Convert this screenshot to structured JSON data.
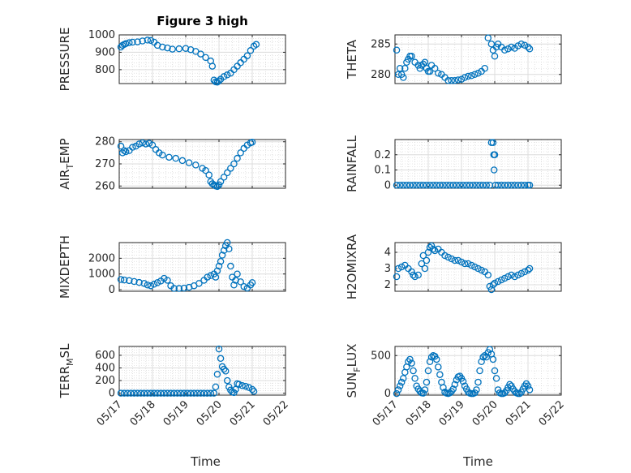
{
  "chart_data": {
    "title": "Figure 3 high",
    "xlabel": "Time",
    "x_tick_labels": [
      "05/17",
      "05/18",
      "05/19",
      "05/20",
      "05/21",
      "05/22"
    ],
    "marker": "circle",
    "marker_color": "#0072BD",
    "grid": true,
    "minor_grid": true,
    "subplots": [
      {
        "type": "scatter",
        "ylabel_main": "PRESSURE",
        "ylabel_sub": "",
        "ylim": [
          720,
          1000
        ],
        "yticks": [
          800,
          900,
          1000
        ],
        "series": [
          {
            "x": [
              17.05,
              17.1,
              17.15,
              17.2,
              17.3,
              17.4,
              17.55,
              17.7,
              17.85,
              17.95,
              18.05,
              18.15,
              18.3,
              18.45,
              18.6,
              18.8,
              19.0,
              19.15,
              19.3,
              19.45,
              19.6,
              19.75,
              19.8,
              19.85,
              19.9,
              19.95,
              20.0,
              20.05,
              20.15,
              20.25,
              20.35,
              20.45,
              20.55,
              20.65,
              20.75,
              20.85,
              20.95,
              21.05,
              21.12
            ],
            "y": [
              930,
              940,
              945,
              950,
              955,
              958,
              960,
              965,
              970,
              968,
              958,
              940,
              930,
              925,
              918,
              920,
              922,
              915,
              905,
              890,
              870,
              850,
              820,
              740,
              730,
              728,
              735,
              745,
              760,
              770,
              780,
              800,
              820,
              840,
              860,
              880,
              910,
              935,
              945
            ]
          }
        ]
      },
      {
        "type": "scatter",
        "ylabel_main": "THETA",
        "ylabel_sub": "",
        "ylim": [
          278.5,
          286.5
        ],
        "yticks": [
          280,
          285
        ],
        "series": [
          {
            "x": [
              17.05,
              17.1,
              17.15,
              17.2,
              17.25,
              17.3,
              17.35,
              17.4,
              17.45,
              17.5,
              17.6,
              17.7,
              17.75,
              17.8,
              17.85,
              17.9,
              17.95,
              18.0,
              18.05,
              18.1,
              18.2,
              18.3,
              18.4,
              18.5,
              18.6,
              18.7,
              18.8,
              18.9,
              19.0,
              19.1,
              19.2,
              19.3,
              19.4,
              19.5,
              19.6,
              19.7,
              19.8,
              19.9,
              19.95,
              20.0,
              20.05,
              20.1,
              20.2,
              20.3,
              20.4,
              20.5,
              20.6,
              20.7,
              20.8,
              20.9,
              21.0,
              21.05
            ],
            "y": [
              284,
              280,
              281,
              280,
              279.5,
              281,
              282,
              282.5,
              283,
              283,
              282,
              281.5,
              281,
              281.5,
              281.7,
              282,
              281,
              280.5,
              280.5,
              281.5,
              281,
              280.2,
              280,
              279.5,
              279,
              279,
              279,
              279.1,
              279.2,
              279.5,
              279.7,
              279.8,
              280,
              280.2,
              280.5,
              281,
              286,
              285,
              284,
              283,
              284.5,
              285,
              284.5,
              284,
              284.2,
              284.5,
              284.3,
              284.7,
              285,
              284.8,
              284.5,
              284.2
            ]
          }
        ]
      },
      {
        "type": "scatter",
        "ylabel_main": "AIR",
        "ylabel_sub": "T",
        "ylabel_tail": "EMP",
        "ylim": [
          259,
          281
        ],
        "yticks": [
          260,
          270,
          280
        ],
        "series": [
          {
            "x": [
              17.05,
              17.1,
              17.15,
              17.2,
              17.3,
              17.4,
              17.5,
              17.6,
              17.7,
              17.8,
              17.9,
              18.0,
              18.1,
              18.2,
              18.3,
              18.5,
              18.7,
              18.9,
              19.1,
              19.3,
              19.5,
              19.6,
              19.7,
              19.75,
              19.8,
              19.85,
              19.9,
              19.95,
              20.0,
              20.05,
              20.15,
              20.25,
              20.35,
              20.45,
              20.55,
              20.65,
              20.75,
              20.85,
              20.95,
              21.0
            ],
            "y": [
              278,
              275,
              276,
              275.5,
              276,
              277.5,
              278,
              279,
              279.5,
              279,
              279.3,
              278.5,
              276.5,
              275,
              274,
              273,
              272.5,
              271.5,
              270.5,
              269.5,
              268,
              267,
              265,
              262,
              261,
              260.5,
              260,
              259.8,
              260.5,
              262,
              264,
              266,
              268,
              270,
              272.5,
              275,
              277,
              278.5,
              279.5,
              279.8
            ]
          }
        ]
      },
      {
        "type": "scatter",
        "ylabel_main": "RAINFALL",
        "ylabel_sub": "",
        "ylim": [
          -0.02,
          0.3
        ],
        "yticks": [
          0,
          0.1,
          0.2
        ],
        "series": [
          {
            "x": [
              17.05,
              17.15,
              17.25,
              17.35,
              17.45,
              17.55,
              17.65,
              17.75,
              17.85,
              17.95,
              18.05,
              18.15,
              18.25,
              18.35,
              18.45,
              18.55,
              18.65,
              18.75,
              18.85,
              18.95,
              19.05,
              19.15,
              19.25,
              19.35,
              19.45,
              19.55,
              19.65,
              19.75,
              19.85,
              19.9,
              19.95,
              19.97,
              19.98,
              20.0,
              20.02,
              20.1,
              20.2,
              20.3,
              20.4,
              20.5,
              20.6,
              20.7,
              20.8,
              20.9,
              21.0,
              21.05
            ],
            "y": [
              0,
              0,
              0,
              0,
              0,
              0,
              0,
              0,
              0,
              0,
              0,
              0,
              0,
              0,
              0,
              0,
              0,
              0,
              0,
              0,
              0,
              0,
              0,
              0,
              0,
              0,
              0,
              0,
              0,
              0.28,
              0.28,
              0.2,
              0.1,
              0.2,
              0,
              0,
              0,
              0,
              0,
              0,
              0,
              0,
              0,
              0,
              0,
              0
            ]
          }
        ]
      },
      {
        "type": "scatter",
        "ylabel_main": "MIXDEPTH",
        "ylabel_sub": "",
        "ylim": [
          -100,
          3000
        ],
        "yticks": [
          0,
          1000,
          2000
        ],
        "series": [
          {
            "x": [
              17.05,
              17.15,
              17.3,
              17.45,
              17.6,
              17.75,
              17.85,
              17.95,
              18.05,
              18.15,
              18.25,
              18.35,
              18.45,
              18.55,
              18.65,
              18.8,
              18.95,
              19.1,
              19.25,
              19.4,
              19.55,
              19.65,
              19.75,
              19.85,
              19.9,
              19.95,
              20.0,
              20.05,
              20.1,
              20.15,
              20.2,
              20.25,
              20.3,
              20.35,
              20.4,
              20.45,
              20.5,
              20.55,
              20.65,
              20.75,
              20.85,
              20.95,
              21.0
            ],
            "y": [
              650,
              620,
              580,
              520,
              460,
              400,
              300,
              250,
              350,
              450,
              550,
              720,
              600,
              250,
              80,
              80,
              100,
              150,
              250,
              400,
              600,
              800,
              900,
              1000,
              800,
              1200,
              1500,
              1800,
              2200,
              2500,
              2800,
              3000,
              2600,
              1500,
              800,
              300,
              600,
              1000,
              500,
              200,
              100,
              300,
              450
            ]
          }
        ]
      },
      {
        "type": "scatter",
        "ylabel_main": "H2OMIXRA",
        "ylabel_sub": "",
        "ylim": [
          1.6,
          4.6
        ],
        "yticks": [
          2,
          3,
          4
        ],
        "series": [
          {
            "x": [
              17.05,
              17.1,
              17.2,
              17.3,
              17.4,
              17.5,
              17.55,
              17.6,
              17.7,
              17.8,
              17.85,
              17.9,
              17.95,
              18.0,
              18.05,
              18.1,
              18.15,
              18.2,
              18.3,
              18.4,
              18.5,
              18.6,
              18.7,
              18.8,
              18.9,
              19.0,
              19.1,
              19.2,
              19.3,
              19.4,
              19.5,
              19.6,
              19.7,
              19.8,
              19.85,
              19.9,
              19.95,
              20.0,
              20.1,
              20.2,
              20.3,
              20.4,
              20.5,
              20.6,
              20.7,
              20.8,
              20.9,
              21.0,
              21.05
            ],
            "y": [
              2.5,
              3,
              3.1,
              3.2,
              3,
              2.8,
              2.6,
              2.5,
              2.6,
              3.3,
              3.8,
              3,
              3.5,
              4,
              4.3,
              4.4,
              4.2,
              4.1,
              4.2,
              4.0,
              3.8,
              3.7,
              3.6,
              3.5,
              3.5,
              3.4,
              3.3,
              3.3,
              3.2,
              3.1,
              3.0,
              2.9,
              2.8,
              2.6,
              1.9,
              1.7,
              2.0,
              2.1,
              2.2,
              2.3,
              2.4,
              2.5,
              2.6,
              2.5,
              2.6,
              2.7,
              2.8,
              2.9,
              3.0
            ]
          }
        ]
      },
      {
        "type": "scatter",
        "ylabel_main": "TERR",
        "ylabel_sub": "M",
        "ylabel_tail": "SL",
        "ylim": [
          -30,
          740
        ],
        "yticks": [
          0,
          200,
          400,
          600
        ],
        "series": [
          {
            "x": [
              17.05,
              17.15,
              17.25,
              17.35,
              17.45,
              17.55,
              17.65,
              17.75,
              17.85,
              17.95,
              18.05,
              18.15,
              18.25,
              18.35,
              18.45,
              18.55,
              18.65,
              18.75,
              18.85,
              18.95,
              19.05,
              19.15,
              19.25,
              19.35,
              19.45,
              19.55,
              19.65,
              19.75,
              19.85,
              19.9,
              19.95,
              20.0,
              20.05,
              20.1,
              20.15,
              20.2,
              20.25,
              20.3,
              20.35,
              20.4,
              20.45,
              20.5,
              20.55,
              20.6,
              20.7,
              20.8,
              20.9,
              21.0,
              21.05
            ],
            "y": [
              0,
              0,
              0,
              0,
              0,
              0,
              0,
              0,
              0,
              0,
              0,
              0,
              0,
              0,
              0,
              0,
              0,
              0,
              0,
              0,
              0,
              0,
              0,
              0,
              0,
              0,
              0,
              0,
              0,
              100,
              300,
              700,
              550,
              420,
              380,
              350,
              200,
              100,
              50,
              20,
              10,
              60,
              150,
              140,
              120,
              110,
              90,
              60,
              30
            ]
          }
        ]
      },
      {
        "type": "scatter",
        "ylabel_main": "SUN",
        "ylabel_sub": "F",
        "ylabel_tail": "LUX",
        "ylim": [
          -20,
          620
        ],
        "yticks": [
          0,
          500
        ],
        "series": [
          {
            "x": [
              17.05,
              17.1,
              17.15,
              17.2,
              17.25,
              17.3,
              17.35,
              17.4,
              17.45,
              17.5,
              17.55,
              17.6,
              17.65,
              17.7,
              17.75,
              17.8,
              17.85,
              17.9,
              17.95,
              18.0,
              18.05,
              18.1,
              18.15,
              18.2,
              18.25,
              18.3,
              18.35,
              18.4,
              18.45,
              18.5,
              18.55,
              18.6,
              18.65,
              18.7,
              18.75,
              18.8,
              18.85,
              18.9,
              18.95,
              19.0,
              19.05,
              19.1,
              19.15,
              19.2,
              19.25,
              19.3,
              19.35,
              19.4,
              19.45,
              19.5,
              19.55,
              19.6,
              19.65,
              19.7,
              19.75,
              19.8,
              19.85,
              19.9,
              19.95,
              20.0,
              20.05,
              20.1,
              20.15,
              20.2,
              20.25,
              20.3,
              20.35,
              20.4,
              20.45,
              20.5,
              20.55,
              20.6,
              20.65,
              20.7,
              20.75,
              20.8,
              20.85,
              20.9,
              20.95,
              21.0,
              21.05
            ],
            "y": [
              0,
              50,
              100,
              150,
              200,
              280,
              350,
              420,
              450,
              400,
              300,
              200,
              100,
              60,
              30,
              10,
              5,
              50,
              150,
              300,
              420,
              480,
              500,
              490,
              450,
              350,
              250,
              150,
              80,
              20,
              5,
              0,
              10,
              30,
              60,
              120,
              180,
              220,
              230,
              200,
              160,
              100,
              60,
              20,
              5,
              0,
              0,
              10,
              50,
              150,
              300,
              420,
              480,
              500,
              480,
              540,
              580,
              520,
              450,
              300,
              200,
              50,
              10,
              0,
              0,
              10,
              40,
              80,
              120,
              100,
              60,
              30,
              10,
              0,
              0,
              20,
              60,
              100,
              130,
              100,
              50
            ]
          }
        ]
      }
    ]
  }
}
